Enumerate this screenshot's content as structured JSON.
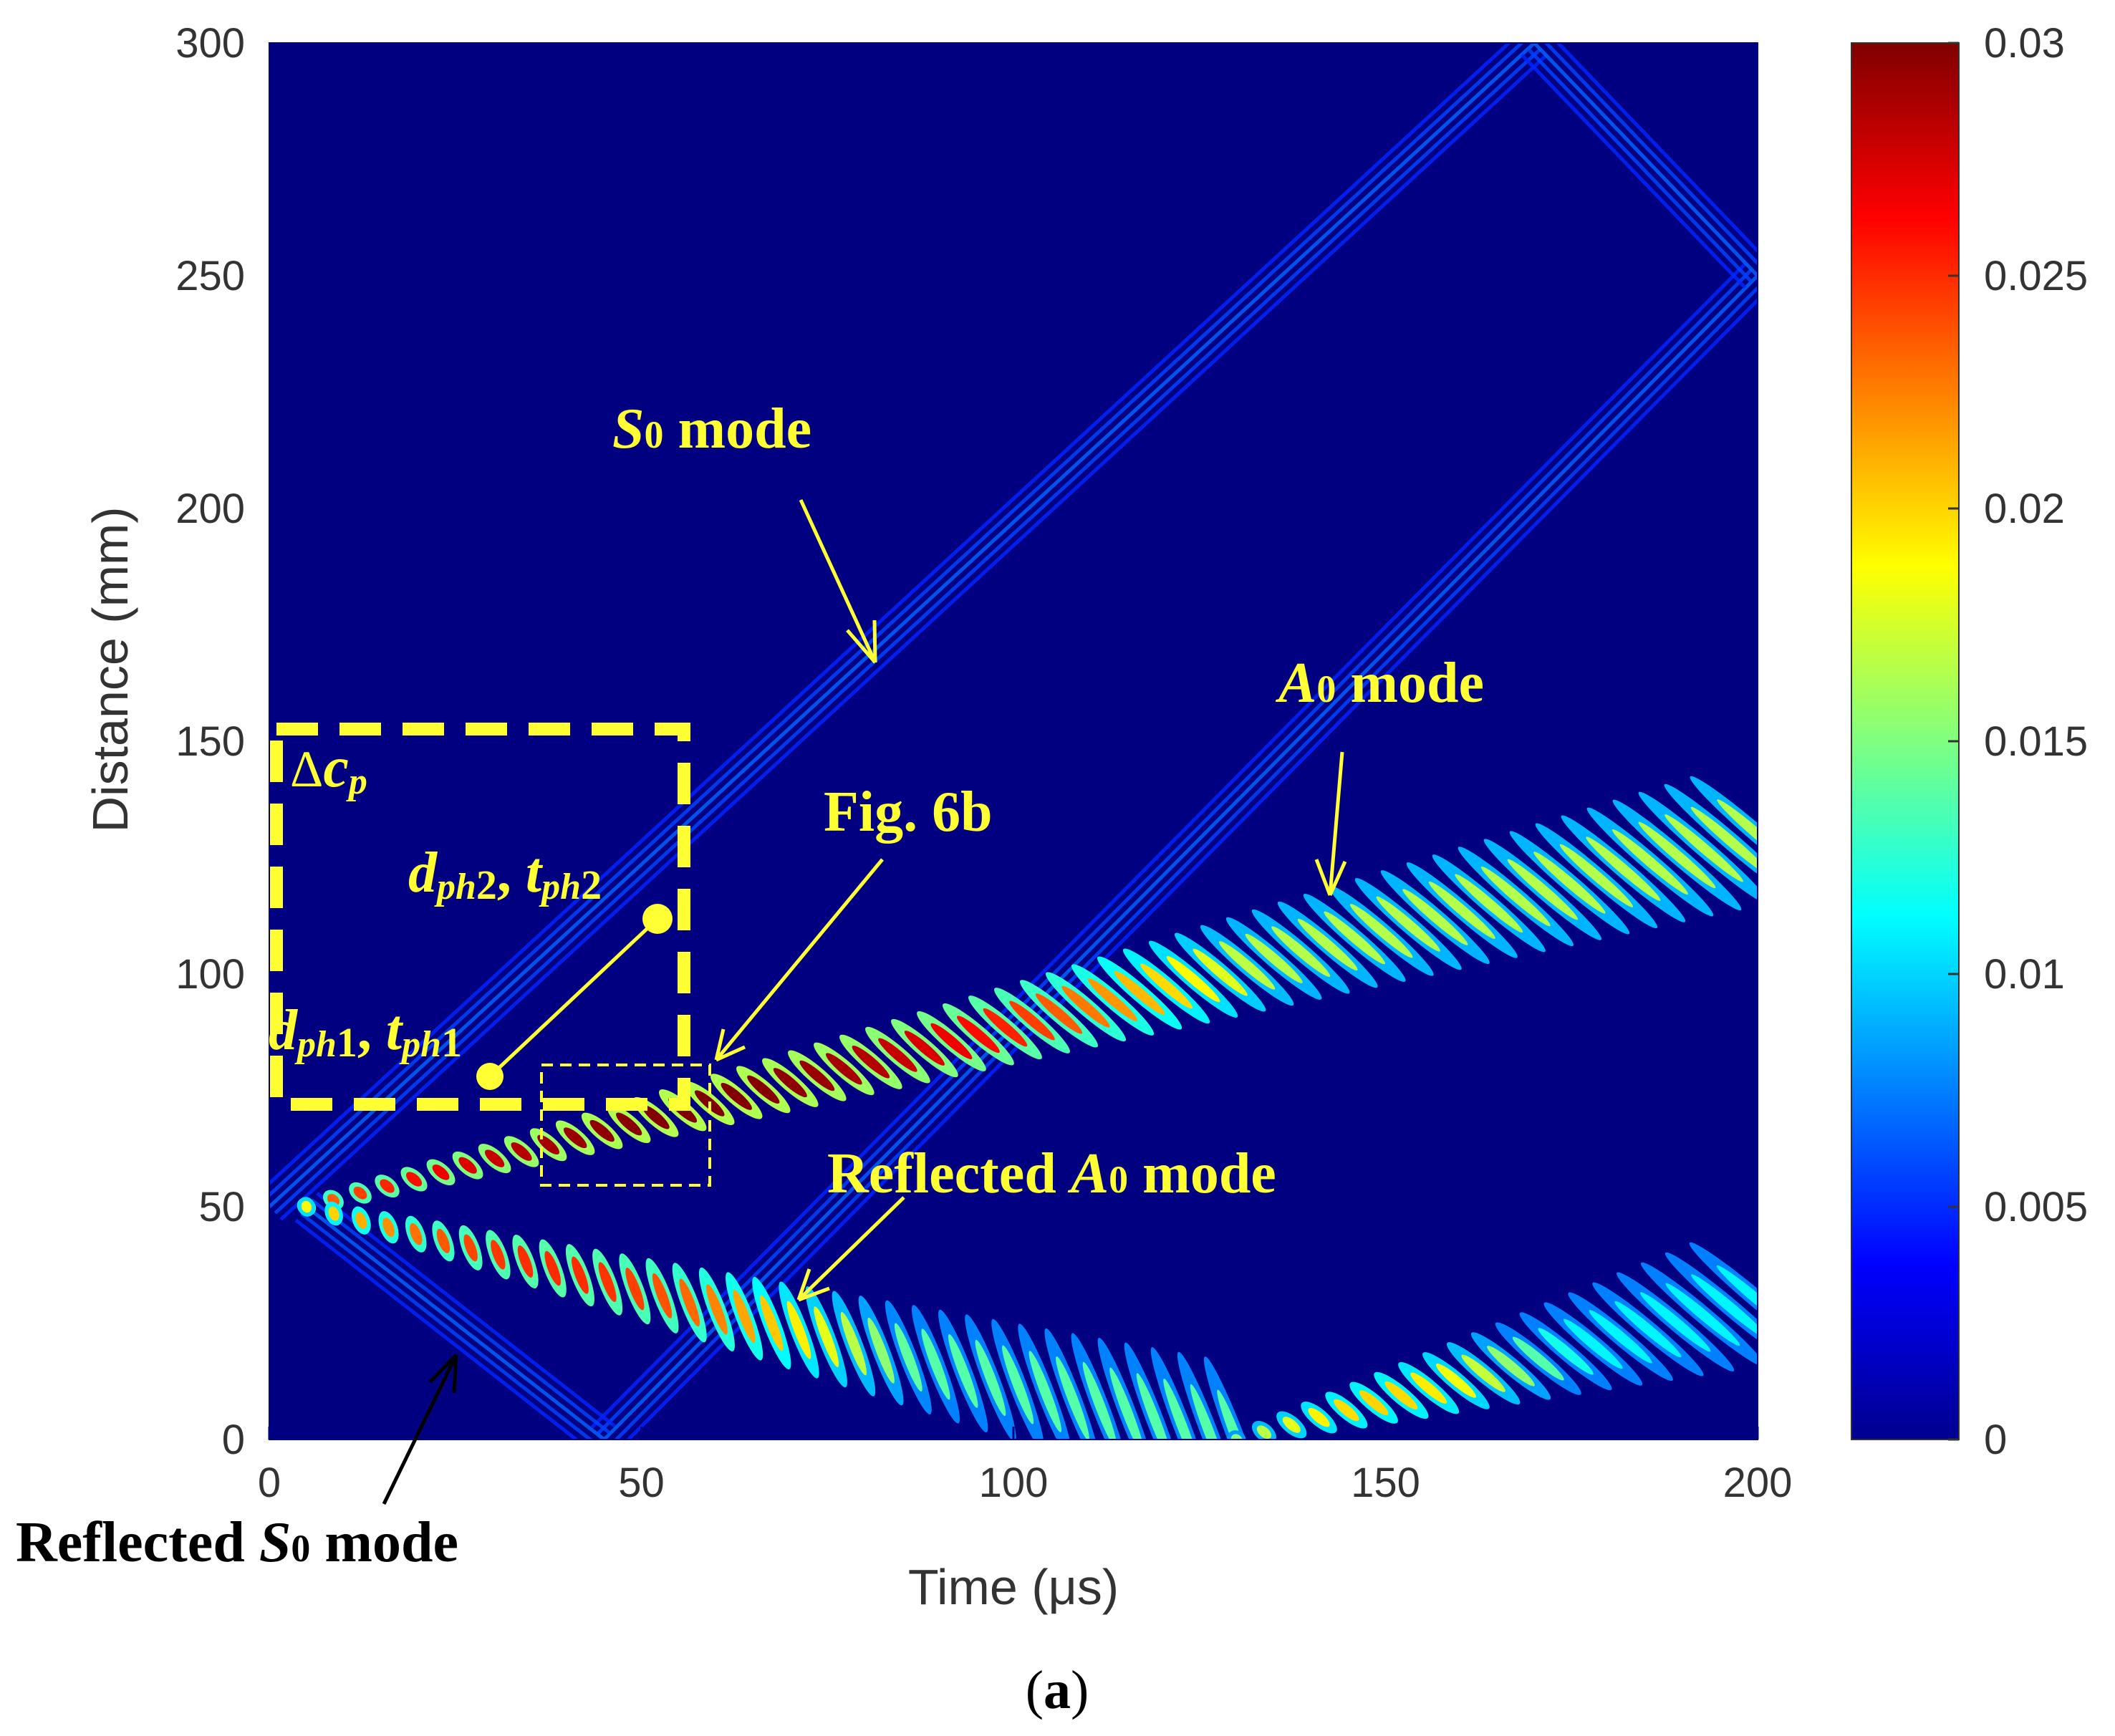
{
  "chart_data": {
    "type": "heatmap",
    "title": "",
    "xlabel": "Time (μs)",
    "ylabel": "Distance (mm)",
    "xlim": [
      0,
      200
    ],
    "ylim": [
      0,
      300
    ],
    "xticks": [
      "0",
      "50",
      "100",
      "150",
      "200"
    ],
    "yticks": [
      "0",
      "50",
      "100",
      "150",
      "200",
      "250",
      "300"
    ],
    "colorbar": {
      "range": [
        0,
        0.03
      ],
      "ticks": [
        "0",
        "0.005",
        "0.01",
        "0.015",
        "0.02",
        "0.025",
        "0.03"
      ],
      "colormap": "jet"
    },
    "source_position_mm": 50,
    "waves": [
      {
        "name": "S0 forward",
        "amplitude": 0.003,
        "start": [
          0,
          50
        ],
        "end": [
          170,
          300
        ]
      },
      {
        "name": "S0 from boundary",
        "amplitude": 0.003,
        "start": [
          45,
          0
        ],
        "end": [
          200,
          250
        ]
      },
      {
        "name": "S0 reflected downward",
        "amplitude": 0.003,
        "start": [
          5,
          50
        ],
        "end": [
          45,
          0
        ]
      },
      {
        "name": "S0 top reflection",
        "amplitude": 0.003,
        "start": [
          170,
          300
        ],
        "end": [
          200,
          250
        ]
      },
      {
        "name": "A0 mode",
        "amplitude": 0.03,
        "start": [
          5,
          50
        ],
        "end": [
          200,
          130
        ]
      },
      {
        "name": "Reflected A0 mode",
        "amplitude": 0.025,
        "start": [
          5,
          50
        ],
        "end": [
          130,
          0
        ]
      },
      {
        "name": "A0 re-reflected",
        "amplitude": 0.02,
        "start": [
          130,
          0
        ],
        "end": [
          200,
          30
        ]
      }
    ],
    "points": [
      {
        "t": 29,
        "d": 78
      },
      {
        "t": 52,
        "d": 112
      }
    ],
    "regions": [
      {
        "name": "Δcp",
        "t": [
          0,
          56
        ],
        "d": [
          73,
          153
        ]
      },
      {
        "name": "Fig. 6b",
        "t": [
          37,
          59
        ],
        "d": [
          55,
          81
        ]
      }
    ]
  },
  "annotations": {
    "s0_mode_italic": "S",
    "s0_mode_sub": "0",
    "s0_mode_rest": " mode",
    "a0_mode_italic": "A",
    "a0_mode_sub": "0",
    "a0_mode_rest": " mode",
    "fig6b": "Fig. 6b",
    "delta": "Δ",
    "cp_italic": "c",
    "cp_sub": "p",
    "dph2_d": "d",
    "dph2_sub": "ph",
    "dph2_num": "2",
    "dph2_comma": ", ",
    "tph2_t": "t",
    "tph2_sub": "ph",
    "tph2_num": "2",
    "dph1_d": "d",
    "dph1_sub": "ph",
    "dph1_num": "1",
    "dph1_comma": ", ",
    "tph1_t": "t",
    "tph1_sub": "ph",
    "tph1_num": "1",
    "refl_a0_prefix": "Reflected ",
    "refl_a0_italic": "A",
    "refl_a0_sub": "0",
    "refl_a0_rest": " mode",
    "refl_s0_prefix": "Reflected ",
    "refl_s0_italic": "S",
    "refl_s0_sub": "0",
    "refl_s0_rest": " mode"
  },
  "caption": {
    "open": "(",
    "letter": "a",
    "close": ")"
  },
  "colors": {
    "background": "#000080",
    "annotation": "#ffff33",
    "black": "#000000"
  }
}
